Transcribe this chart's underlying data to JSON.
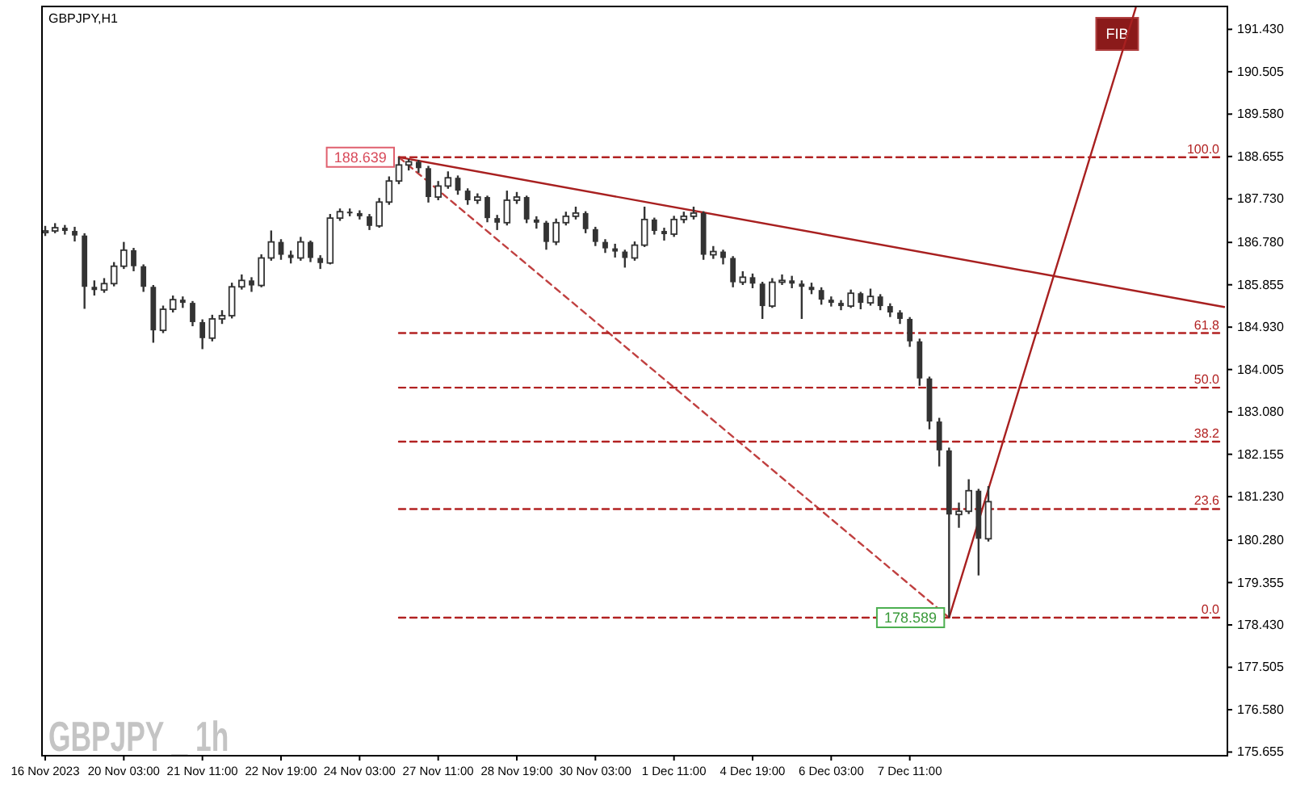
{
  "chart_data": {
    "type": "candlestick",
    "title": "GBPJPY,H1",
    "color": "#333333",
    "categories": [
      "16 Nov 2023",
      null,
      null,
      null,
      null,
      null,
      null,
      null,
      "20 Nov 03:00",
      null,
      null,
      null,
      null,
      null,
      null,
      null,
      "21 Nov 11:00",
      null,
      null,
      null,
      null,
      null,
      null,
      null,
      "22 Nov 19:00",
      null,
      null,
      null,
      null,
      null,
      null,
      null,
      "24 Nov 03:00",
      null,
      null,
      null,
      null,
      null,
      null,
      null,
      "27 Nov 11:00",
      null,
      null,
      null,
      null,
      null,
      null,
      null,
      "28 Nov 19:00",
      null,
      null,
      null,
      null,
      null,
      null,
      null,
      "30 Nov 03:00",
      null,
      null,
      null,
      null,
      null,
      null,
      null,
      "1 Dec 11:00",
      null,
      null,
      null,
      null,
      null,
      null,
      null,
      "4 Dec 19:00",
      null,
      null,
      null,
      null,
      null,
      null,
      null,
      "6 Dec 03:00",
      null,
      null,
      null,
      null,
      null,
      null,
      null,
      "7 Dec 11:00",
      null,
      null,
      null,
      null,
      null,
      null,
      null,
      null,
      null,
      null,
      null,
      null,
      null,
      null,
      null,
      null,
      null,
      null,
      null,
      null,
      null,
      null,
      null,
      null,
      null,
      null,
      null,
      null,
      null,
      null,
      null,
      null
    ],
    "ohlc": [
      [
        187.0,
        187.14,
        186.92,
        187.03
      ],
      [
        187.03,
        187.2,
        186.98,
        187.1
      ],
      [
        187.1,
        187.16,
        186.95,
        187.03
      ],
      [
        187.03,
        187.12,
        186.8,
        186.93
      ],
      [
        186.93,
        186.98,
        185.33,
        185.81
      ],
      [
        185.81,
        185.95,
        185.62,
        185.74
      ],
      [
        185.74,
        186.0,
        185.68,
        185.88
      ],
      [
        185.88,
        186.35,
        185.82,
        186.26
      ],
      [
        186.26,
        186.79,
        186.2,
        186.61
      ],
      [
        186.61,
        186.66,
        186.15,
        186.26
      ],
      [
        186.26,
        186.3,
        185.7,
        185.81
      ],
      [
        185.81,
        185.85,
        184.59,
        184.86
      ],
      [
        184.86,
        185.4,
        184.8,
        185.32
      ],
      [
        185.32,
        185.62,
        185.25,
        185.53
      ],
      [
        185.53,
        185.6,
        185.35,
        185.46
      ],
      [
        185.46,
        185.5,
        184.95,
        185.04
      ],
      [
        185.04,
        185.1,
        184.45,
        184.69
      ],
      [
        184.69,
        185.2,
        184.62,
        185.11
      ],
      [
        185.11,
        185.3,
        185.0,
        185.18
      ],
      [
        185.18,
        185.9,
        185.12,
        185.81
      ],
      [
        185.81,
        186.08,
        185.75,
        185.95
      ],
      [
        185.95,
        186.02,
        185.7,
        185.84
      ],
      [
        185.84,
        186.52,
        185.8,
        186.44
      ],
      [
        186.44,
        187.04,
        186.38,
        186.79
      ],
      [
        186.79,
        186.85,
        186.4,
        186.51
      ],
      [
        186.51,
        186.6,
        186.32,
        186.44
      ],
      [
        186.44,
        186.9,
        186.38,
        186.79
      ],
      [
        186.79,
        186.82,
        186.35,
        186.44
      ],
      [
        186.44,
        186.5,
        186.2,
        186.33
      ],
      [
        186.33,
        187.4,
        186.3,
        187.31
      ],
      [
        187.31,
        187.52,
        187.25,
        187.45
      ],
      [
        187.45,
        187.52,
        187.35,
        187.42
      ],
      [
        187.42,
        187.48,
        187.28,
        187.35
      ],
      [
        187.35,
        187.4,
        187.05,
        187.14
      ],
      [
        187.14,
        187.75,
        187.1,
        187.66
      ],
      [
        187.66,
        188.22,
        187.6,
        188.12
      ],
      [
        188.12,
        188.639,
        188.05,
        188.47
      ],
      [
        188.47,
        188.6,
        188.35,
        188.54
      ],
      [
        188.54,
        188.58,
        188.3,
        188.4
      ],
      [
        188.4,
        188.45,
        187.65,
        187.77
      ],
      [
        187.77,
        188.12,
        187.7,
        188.01
      ],
      [
        188.01,
        188.33,
        187.95,
        188.19
      ],
      [
        188.19,
        188.24,
        187.82,
        187.91
      ],
      [
        187.91,
        187.96,
        187.6,
        187.7
      ],
      [
        187.7,
        187.85,
        187.62,
        187.77
      ],
      [
        187.77,
        187.8,
        187.22,
        187.31
      ],
      [
        187.31,
        187.38,
        187.05,
        187.21
      ],
      [
        187.21,
        187.91,
        187.15,
        187.7
      ],
      [
        187.7,
        187.88,
        187.62,
        187.77
      ],
      [
        187.77,
        187.8,
        187.2,
        187.28
      ],
      [
        187.28,
        187.35,
        187.08,
        187.21
      ],
      [
        187.21,
        187.25,
        186.62,
        186.79
      ],
      [
        186.79,
        187.3,
        186.72,
        187.21
      ],
      [
        187.21,
        187.45,
        187.15,
        187.35
      ],
      [
        187.35,
        187.56,
        187.28,
        187.42
      ],
      [
        187.42,
        187.46,
        186.98,
        187.07
      ],
      [
        187.07,
        187.12,
        186.7,
        186.79
      ],
      [
        186.79,
        186.85,
        186.55,
        186.65
      ],
      [
        186.65,
        186.75,
        186.45,
        186.58
      ],
      [
        186.58,
        186.62,
        186.23,
        186.44
      ],
      [
        186.44,
        186.8,
        186.38,
        186.72
      ],
      [
        186.72,
        187.56,
        186.68,
        187.28
      ],
      [
        187.28,
        187.32,
        186.95,
        187.03
      ],
      [
        187.03,
        187.1,
        186.82,
        186.96
      ],
      [
        186.96,
        187.36,
        186.9,
        187.28
      ],
      [
        187.28,
        187.45,
        187.2,
        187.35
      ],
      [
        187.35,
        187.56,
        187.28,
        187.42
      ],
      [
        187.42,
        187.46,
        186.4,
        186.51
      ],
      [
        186.51,
        186.7,
        186.42,
        186.58
      ],
      [
        186.58,
        186.62,
        186.3,
        186.44
      ],
      [
        186.44,
        186.48,
        185.8,
        185.91
      ],
      [
        185.91,
        186.15,
        185.85,
        186.02
      ],
      [
        186.02,
        186.1,
        185.78,
        185.88
      ],
      [
        185.88,
        185.92,
        185.11,
        185.39
      ],
      [
        185.39,
        186.0,
        185.35,
        185.91
      ],
      [
        185.91,
        186.08,
        185.85,
        185.95
      ],
      [
        185.95,
        186.05,
        185.78,
        185.88
      ],
      [
        185.88,
        185.95,
        185.11,
        185.81
      ],
      [
        185.81,
        185.9,
        185.65,
        185.74
      ],
      [
        185.74,
        185.8,
        185.42,
        185.53
      ],
      [
        185.53,
        185.6,
        185.38,
        185.46
      ],
      [
        185.46,
        185.52,
        185.3,
        185.39
      ],
      [
        185.39,
        185.75,
        185.35,
        185.67
      ],
      [
        185.67,
        185.7,
        185.32,
        185.46
      ],
      [
        185.46,
        185.77,
        185.4,
        185.6
      ],
      [
        185.6,
        185.65,
        185.3,
        185.39
      ],
      [
        185.39,
        185.45,
        185.15,
        185.25
      ],
      [
        185.25,
        185.3,
        185.0,
        185.11
      ],
      [
        185.11,
        185.15,
        184.5,
        184.62
      ],
      [
        184.62,
        184.68,
        183.65,
        183.81
      ],
      [
        183.81,
        183.85,
        182.7,
        182.87
      ],
      [
        182.87,
        182.95,
        181.89,
        182.24
      ],
      [
        182.24,
        182.3,
        178.589,
        180.84
      ],
      [
        180.84,
        181.1,
        180.55,
        180.91
      ],
      [
        180.91,
        181.61,
        180.85,
        181.36
      ],
      [
        181.36,
        181.4,
        179.51,
        180.31
      ],
      [
        180.31,
        181.46,
        180.25,
        181.12
      ],
      null,
      null,
      null,
      null,
      null,
      null,
      null,
      null,
      null,
      null,
      null,
      null,
      null,
      null,
      null,
      null,
      null,
      null,
      null,
      null,
      null,
      null,
      null,
      null
    ],
    "series": [
      {
        "type": "line",
        "color": "#a82020",
        "values": [
          null,
          null,
          null,
          null,
          null,
          null,
          null,
          null,
          null,
          null,
          null,
          null,
          null,
          null,
          null,
          null,
          null,
          null,
          null,
          null,
          null,
          null,
          null,
          null,
          null,
          null,
          null,
          null,
          null,
          null,
          null,
          null,
          null,
          null,
          null,
          null,
          188.639,
          null,
          null,
          null,
          null,
          null,
          null,
          null,
          null,
          null,
          null,
          null,
          null,
          null,
          null,
          null,
          null,
          null,
          null,
          null,
          null,
          null,
          null,
          null,
          null,
          null,
          null,
          null,
          null,
          null,
          null,
          null,
          null,
          null,
          null,
          null,
          null,
          null,
          null,
          null,
          null,
          null,
          null,
          null,
          null,
          null,
          null,
          null,
          null,
          null,
          null,
          null,
          null,
          null,
          null,
          null,
          null,
          null,
          null,
          null,
          null,
          null,
          null,
          null,
          null,
          null,
          null,
          null,
          null,
          null,
          null,
          null,
          null,
          null,
          null,
          null,
          null,
          null,
          null,
          null,
          null,
          null,
          null,
          null,
          185.37
        ]
      },
      {
        "type": "line",
        "color": "#a82020",
        "values": [
          null,
          null,
          null,
          null,
          null,
          null,
          null,
          null,
          null,
          null,
          null,
          null,
          null,
          null,
          null,
          null,
          null,
          null,
          null,
          null,
          null,
          null,
          null,
          null,
          null,
          null,
          null,
          null,
          null,
          null,
          null,
          null,
          null,
          null,
          null,
          null,
          null,
          null,
          null,
          null,
          null,
          null,
          null,
          null,
          null,
          null,
          null,
          null,
          null,
          null,
          null,
          null,
          null,
          null,
          null,
          null,
          null,
          null,
          null,
          null,
          null,
          null,
          null,
          null,
          null,
          null,
          null,
          null,
          null,
          null,
          null,
          null,
          null,
          null,
          null,
          null,
          null,
          null,
          null,
          null,
          null,
          null,
          null,
          null,
          null,
          null,
          null,
          null,
          null,
          null,
          null,
          null,
          178.589,
          null,
          null,
          null,
          null,
          null,
          null,
          null,
          null,
          null,
          null,
          null,
          null,
          null,
          null,
          null,
          null,
          null,
          null,
          191.9,
          null,
          null,
          null,
          null,
          null,
          null,
          null,
          null,
          null
        ]
      },
      {
        "type": "line",
        "color": "#c04040",
        "line_style": "dashed",
        "values": [
          null,
          null,
          null,
          null,
          null,
          null,
          null,
          null,
          null,
          null,
          null,
          null,
          null,
          null,
          null,
          null,
          null,
          null,
          null,
          null,
          null,
          null,
          null,
          null,
          null,
          null,
          null,
          null,
          null,
          null,
          null,
          null,
          null,
          null,
          null,
          null,
          188.639,
          null,
          null,
          null,
          null,
          null,
          null,
          null,
          null,
          null,
          null,
          null,
          null,
          null,
          null,
          null,
          null,
          null,
          null,
          null,
          null,
          null,
          null,
          null,
          null,
          null,
          null,
          null,
          null,
          null,
          null,
          null,
          null,
          null,
          null,
          null,
          null,
          null,
          null,
          null,
          null,
          null,
          null,
          null,
          null,
          null,
          null,
          null,
          null,
          null,
          null,
          null,
          null,
          null,
          null,
          null,
          178.589,
          null,
          null,
          null,
          null,
          null,
          null,
          null,
          null,
          null,
          null,
          null,
          null,
          null,
          null,
          null,
          null,
          null,
          null,
          null,
          null,
          null,
          null,
          null,
          null,
          null,
          null,
          null,
          null
        ],
        "value_labels": [
          null,
          null,
          null,
          null,
          null,
          null,
          null,
          null,
          null,
          null,
          null,
          null,
          null,
          null,
          null,
          null,
          null,
          null,
          null,
          null,
          null,
          null,
          null,
          null,
          null,
          null,
          null,
          null,
          null,
          null,
          null,
          null,
          null,
          null,
          null,
          null,
          "188.639",
          null,
          null,
          null,
          null,
          null,
          null,
          null,
          null,
          null,
          null,
          null,
          null,
          null,
          null,
          null,
          null,
          null,
          null,
          null,
          null,
          null,
          null,
          null,
          null,
          null,
          null,
          null,
          null,
          null,
          null,
          null,
          null,
          null,
          null,
          null,
          null,
          null,
          null,
          null,
          null,
          null,
          null,
          null,
          null,
          null,
          null,
          null,
          null,
          null,
          null,
          null,
          null,
          null,
          null,
          null,
          "178.589",
          null,
          null,
          null,
          null,
          null,
          null,
          null,
          null,
          null,
          null,
          null,
          null,
          null,
          null,
          null,
          null,
          null,
          null,
          null,
          null,
          null,
          null,
          null,
          null,
          null,
          null,
          null,
          null
        ]
      },
      {
        "type": "line",
        "name": "100.0",
        "color": "#b22222",
        "line_style": "dashed",
        "values": [
          null,
          null,
          null,
          null,
          null,
          null,
          null,
          null,
          null,
          null,
          null,
          null,
          null,
          null,
          null,
          null,
          null,
          null,
          null,
          null,
          null,
          null,
          null,
          null,
          null,
          null,
          null,
          null,
          null,
          null,
          null,
          null,
          null,
          null,
          null,
          null,
          188.639,
          null,
          null,
          null,
          null,
          null,
          null,
          null,
          null,
          null,
          null,
          null,
          null,
          null,
          null,
          null,
          null,
          null,
          null,
          null,
          null,
          null,
          null,
          null,
          null,
          null,
          null,
          null,
          null,
          null,
          null,
          null,
          null,
          null,
          null,
          null,
          null,
          null,
          null,
          null,
          null,
          null,
          null,
          null,
          null,
          null,
          null,
          null,
          null,
          null,
          null,
          null,
          null,
          null,
          null,
          null,
          null,
          null,
          null,
          null,
          null,
          null,
          null,
          null,
          null,
          null,
          null,
          null,
          null,
          null,
          null,
          null,
          null,
          null,
          null,
          null,
          null,
          null,
          null,
          null,
          null,
          null,
          null,
          null,
          188.639
        ]
      },
      {
        "type": "line",
        "name": "61.8",
        "color": "#b22222",
        "line_style": "dashed",
        "values": [
          null,
          null,
          null,
          null,
          null,
          null,
          null,
          null,
          null,
          null,
          null,
          null,
          null,
          null,
          null,
          null,
          null,
          null,
          null,
          null,
          null,
          null,
          null,
          null,
          null,
          null,
          null,
          null,
          null,
          null,
          null,
          null,
          null,
          null,
          null,
          null,
          184.8,
          null,
          null,
          null,
          null,
          null,
          null,
          null,
          null,
          null,
          null,
          null,
          null,
          null,
          null,
          null,
          null,
          null,
          null,
          null,
          null,
          null,
          null,
          null,
          null,
          null,
          null,
          null,
          null,
          null,
          null,
          null,
          null,
          null,
          null,
          null,
          null,
          null,
          null,
          null,
          null,
          null,
          null,
          null,
          null,
          null,
          null,
          null,
          null,
          null,
          null,
          null,
          null,
          null,
          null,
          null,
          null,
          null,
          null,
          null,
          null,
          null,
          null,
          null,
          null,
          null,
          null,
          null,
          null,
          null,
          null,
          null,
          null,
          null,
          null,
          null,
          null,
          null,
          null,
          null,
          null,
          null,
          null,
          null,
          184.8
        ]
      },
      {
        "type": "line",
        "name": "50.0",
        "color": "#b22222",
        "line_style": "dashed",
        "values": [
          null,
          null,
          null,
          null,
          null,
          null,
          null,
          null,
          null,
          null,
          null,
          null,
          null,
          null,
          null,
          null,
          null,
          null,
          null,
          null,
          null,
          null,
          null,
          null,
          null,
          null,
          null,
          null,
          null,
          null,
          null,
          null,
          null,
          null,
          null,
          null,
          183.61,
          null,
          null,
          null,
          null,
          null,
          null,
          null,
          null,
          null,
          null,
          null,
          null,
          null,
          null,
          null,
          null,
          null,
          null,
          null,
          null,
          null,
          null,
          null,
          null,
          null,
          null,
          null,
          null,
          null,
          null,
          null,
          null,
          null,
          null,
          null,
          null,
          null,
          null,
          null,
          null,
          null,
          null,
          null,
          null,
          null,
          null,
          null,
          null,
          null,
          null,
          null,
          null,
          null,
          null,
          null,
          null,
          null,
          null,
          null,
          null,
          null,
          null,
          null,
          null,
          null,
          null,
          null,
          null,
          null,
          null,
          null,
          null,
          null,
          null,
          null,
          null,
          null,
          null,
          null,
          null,
          null,
          null,
          null,
          183.61
        ]
      },
      {
        "type": "line",
        "name": "38.2",
        "color": "#b22222",
        "line_style": "dashed",
        "values": [
          null,
          null,
          null,
          null,
          null,
          null,
          null,
          null,
          null,
          null,
          null,
          null,
          null,
          null,
          null,
          null,
          null,
          null,
          null,
          null,
          null,
          null,
          null,
          null,
          null,
          null,
          null,
          null,
          null,
          null,
          null,
          null,
          null,
          null,
          null,
          null,
          182.43,
          null,
          null,
          null,
          null,
          null,
          null,
          null,
          null,
          null,
          null,
          null,
          null,
          null,
          null,
          null,
          null,
          null,
          null,
          null,
          null,
          null,
          null,
          null,
          null,
          null,
          null,
          null,
          null,
          null,
          null,
          null,
          null,
          null,
          null,
          null,
          null,
          null,
          null,
          null,
          null,
          null,
          null,
          null,
          null,
          null,
          null,
          null,
          null,
          null,
          null,
          null,
          null,
          null,
          null,
          null,
          null,
          null,
          null,
          null,
          null,
          null,
          null,
          null,
          null,
          null,
          null,
          null,
          null,
          null,
          null,
          null,
          null,
          null,
          null,
          null,
          null,
          null,
          null,
          null,
          null,
          null,
          null,
          null,
          182.43
        ]
      },
      {
        "type": "line",
        "name": "23.6",
        "color": "#b22222",
        "line_style": "dashed",
        "values": [
          null,
          null,
          null,
          null,
          null,
          null,
          null,
          null,
          null,
          null,
          null,
          null,
          null,
          null,
          null,
          null,
          null,
          null,
          null,
          null,
          null,
          null,
          null,
          null,
          null,
          null,
          null,
          null,
          null,
          null,
          null,
          null,
          null,
          null,
          null,
          null,
          180.96,
          null,
          null,
          null,
          null,
          null,
          null,
          null,
          null,
          null,
          null,
          null,
          null,
          null,
          null,
          null,
          null,
          null,
          null,
          null,
          null,
          null,
          null,
          null,
          null,
          null,
          null,
          null,
          null,
          null,
          null,
          null,
          null,
          null,
          null,
          null,
          null,
          null,
          null,
          null,
          null,
          null,
          null,
          null,
          null,
          null,
          null,
          null,
          null,
          null,
          null,
          null,
          null,
          null,
          null,
          null,
          null,
          null,
          null,
          null,
          null,
          null,
          null,
          null,
          null,
          null,
          null,
          null,
          null,
          null,
          null,
          null,
          null,
          null,
          null,
          null,
          null,
          null,
          null,
          null,
          null,
          null,
          null,
          null,
          180.96
        ]
      },
      {
        "type": "line",
        "name": "0.0",
        "color": "#b22222",
        "line_style": "dashed",
        "values": [
          null,
          null,
          null,
          null,
          null,
          null,
          null,
          null,
          null,
          null,
          null,
          null,
          null,
          null,
          null,
          null,
          null,
          null,
          null,
          null,
          null,
          null,
          null,
          null,
          null,
          null,
          null,
          null,
          null,
          null,
          null,
          null,
          null,
          null,
          null,
          null,
          178.589,
          null,
          null,
          null,
          null,
          null,
          null,
          null,
          null,
          null,
          null,
          null,
          null,
          null,
          null,
          null,
          null,
          null,
          null,
          null,
          null,
          null,
          null,
          null,
          null,
          null,
          null,
          null,
          null,
          null,
          null,
          null,
          null,
          null,
          null,
          null,
          null,
          null,
          null,
          null,
          null,
          null,
          null,
          null,
          null,
          null,
          null,
          null,
          null,
          null,
          null,
          null,
          null,
          null,
          null,
          null,
          null,
          null,
          null,
          null,
          null,
          null,
          null,
          null,
          null,
          null,
          null,
          null,
          null,
          null,
          null,
          null,
          null,
          null,
          null,
          null,
          null,
          null,
          null,
          null,
          null,
          null,
          null,
          null,
          178.589
        ]
      }
    ],
    "ylim": [
      175.575,
      191.93
    ],
    "yticks": [
      {
        "value": 191.43,
        "label": "191.430"
      },
      190.505,
      {
        "value": 189.58,
        "label": "189.580"
      },
      188.655,
      {
        "value": 187.73,
        "label": "187.730"
      },
      {
        "value": 186.78,
        "label": "186.780"
      },
      185.855,
      {
        "value": 184.93,
        "label": "184.930"
      },
      184.005,
      {
        "value": 183.08,
        "label": "183.080"
      },
      182.155,
      {
        "value": 181.23,
        "label": "181.230"
      },
      {
        "value": 180.28,
        "label": "180.280"
      },
      179.355,
      {
        "value": 178.43,
        "label": "178.430"
      },
      177.505,
      {
        "value": 176.58,
        "label": "176.580"
      },
      175.655
    ],
    "annotations": [
      "GBPJPY _ 1h",
      "FIB"
    ]
  }
}
